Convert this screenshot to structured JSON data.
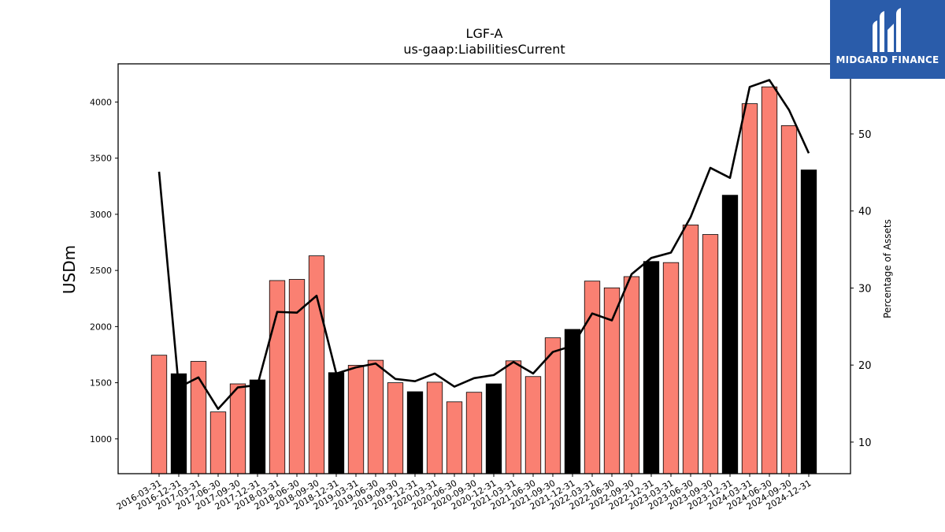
{
  "chart_data": {
    "type": "bar",
    "title": "LGF-A",
    "subtitle": "us-gaap:LiabilitiesCurrent",
    "ylabel": "USDm",
    "y2label": "Percentage of Assets",
    "ylim": [
      690,
      4340
    ],
    "y2lim": [
      5.9,
      59.1
    ],
    "yticks": [
      1000,
      1500,
      2000,
      2500,
      3000,
      3500,
      4000
    ],
    "y2ticks": [
      10,
      20,
      30,
      40,
      50
    ],
    "categories": [
      "2016-03-31",
      "2016-12-31",
      "2017-03-31",
      "2017-06-30",
      "2017-09-30",
      "2017-12-31",
      "2018-03-31",
      "2018-06-30",
      "2018-09-30",
      "2018-12-31",
      "2019-03-31",
      "2019-06-30",
      "2019-09-30",
      "2019-12-31",
      "2020-03-31",
      "2020-06-30",
      "2020-09-30",
      "2020-12-31",
      "2021-03-31",
      "2021-06-30",
      "2021-09-30",
      "2021-12-31",
      "2022-03-31",
      "2022-06-30",
      "2022-09-30",
      "2022-12-31",
      "2023-03-31",
      "2023-06-30",
      "2023-09-30",
      "2023-12-31",
      "2024-03-31",
      "2024-06-30",
      "2024-09-30",
      "2024-12-31"
    ],
    "series": [
      {
        "kind": "bar",
        "values": [
          1745,
          1580,
          1690,
          1240,
          1490,
          1525,
          2410,
          2420,
          2630,
          1590,
          1655,
          1700,
          1500,
          1420,
          1505,
          1330,
          1415,
          1490,
          1695,
          1555,
          1900,
          1975,
          2405,
          2345,
          2445,
          2580,
          2570,
          2905,
          2820,
          3170,
          3985,
          4135,
          3790,
          3395
        ],
        "colors": [
          "#fa8072",
          "#000000",
          "#fa8072",
          "#fa8072",
          "#fa8072",
          "#000000",
          "#fa8072",
          "#fa8072",
          "#fa8072",
          "#000000",
          "#fa8072",
          "#fa8072",
          "#fa8072",
          "#000000",
          "#fa8072",
          "#fa8072",
          "#fa8072",
          "#000000",
          "#fa8072",
          "#fa8072",
          "#fa8072",
          "#000000",
          "#fa8072",
          "#fa8072",
          "#fa8072",
          "#000000",
          "#fa8072",
          "#fa8072",
          "#fa8072",
          "#000000",
          "#fa8072",
          "#fa8072",
          "#fa8072",
          "#000000"
        ]
      },
      {
        "kind": "line",
        "axis": "right",
        "color": "#000000",
        "values": [
          45.1,
          17.1,
          18.4,
          14.3,
          17.1,
          17.4,
          26.9,
          26.8,
          29.0,
          18.9,
          19.7,
          20.2,
          18.2,
          17.9,
          18.9,
          17.2,
          18.3,
          18.7,
          20.4,
          18.9,
          21.7,
          22.5,
          26.7,
          25.8,
          31.8,
          33.9,
          34.6,
          39.2,
          45.6,
          44.3,
          56.1,
          57.0,
          53.1,
          47.5
        ]
      }
    ],
    "colors": {
      "orange": "#fa8072",
      "black": "#000000"
    }
  },
  "logo": {
    "name": "MIDGARD FINANCE",
    "color": "#2a5caa"
  }
}
